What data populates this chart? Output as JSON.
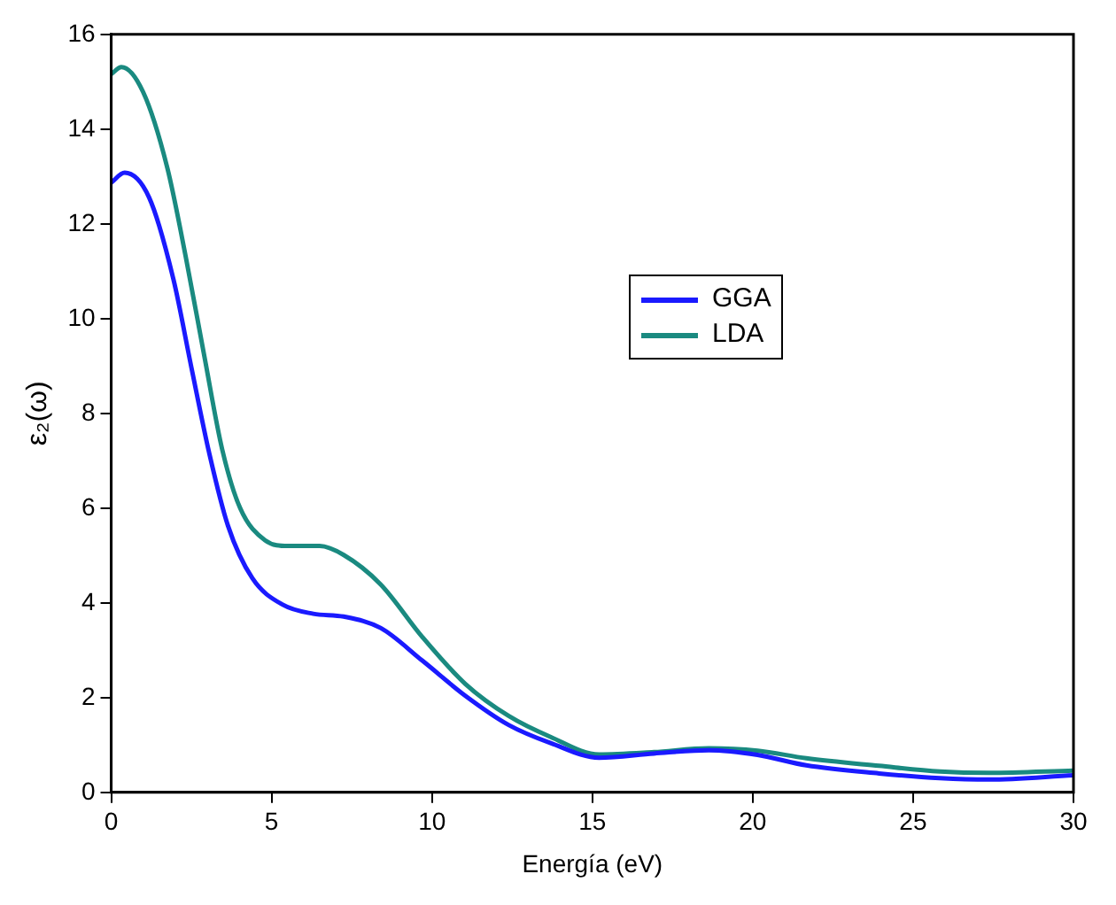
{
  "chart_data": {
    "type": "line",
    "xlabel": "Energía (eV)",
    "ylabel": "ε₂(ω)",
    "xlim": [
      0,
      30
    ],
    "xticks": [
      0,
      5,
      10,
      15,
      20,
      25,
      30
    ],
    "ylim": [
      0,
      16
    ],
    "yticks": [
      0,
      2,
      4,
      6,
      8,
      10,
      12,
      14,
      16
    ],
    "grid": false,
    "legend": "top right",
    "marker": "none",
    "line_style": "solid",
    "series": [
      {
        "name": "GGA",
        "color": "#1a1aff",
        "x": [
          0,
          0.42,
          1.18,
          1.94,
          2.5,
          3.07,
          3.64,
          4.4,
          5.35,
          6.3,
          7.25,
          8.4,
          9.7,
          11.04,
          12.4,
          13.7,
          15.21,
          16.92,
          18.63,
          20.15,
          21.67,
          23.94,
          25.84,
          27.36,
          30
        ],
        "values": [
          12.87,
          13.08,
          12.56,
          10.83,
          8.97,
          7.12,
          5.63,
          4.52,
          3.96,
          3.77,
          3.71,
          3.47,
          2.78,
          2.04,
          1.42,
          1.04,
          0.73,
          0.82,
          0.89,
          0.79,
          0.57,
          0.4,
          0.3,
          0.27,
          0.36
        ]
      },
      {
        "name": "LDA",
        "color": "#1a8a80",
        "x": [
          0,
          0.32,
          0.99,
          1.75,
          2.32,
          2.9,
          3.46,
          4.02,
          4.8,
          5.52,
          6.5,
          7.25,
          8.4,
          9.7,
          11.04,
          12.4,
          13.7,
          15.21,
          16.92,
          18.63,
          20.15,
          21.67,
          23.94,
          25.84,
          27.36,
          30
        ],
        "values": [
          15.16,
          15.31,
          14.79,
          13.18,
          11.32,
          9.22,
          7.24,
          6.0,
          5.32,
          5.2,
          5.2,
          5.01,
          4.39,
          3.28,
          2.29,
          1.61,
          1.17,
          0.8,
          0.85,
          0.93,
          0.88,
          0.72,
          0.56,
          0.44,
          0.41,
          0.46
        ]
      }
    ]
  }
}
